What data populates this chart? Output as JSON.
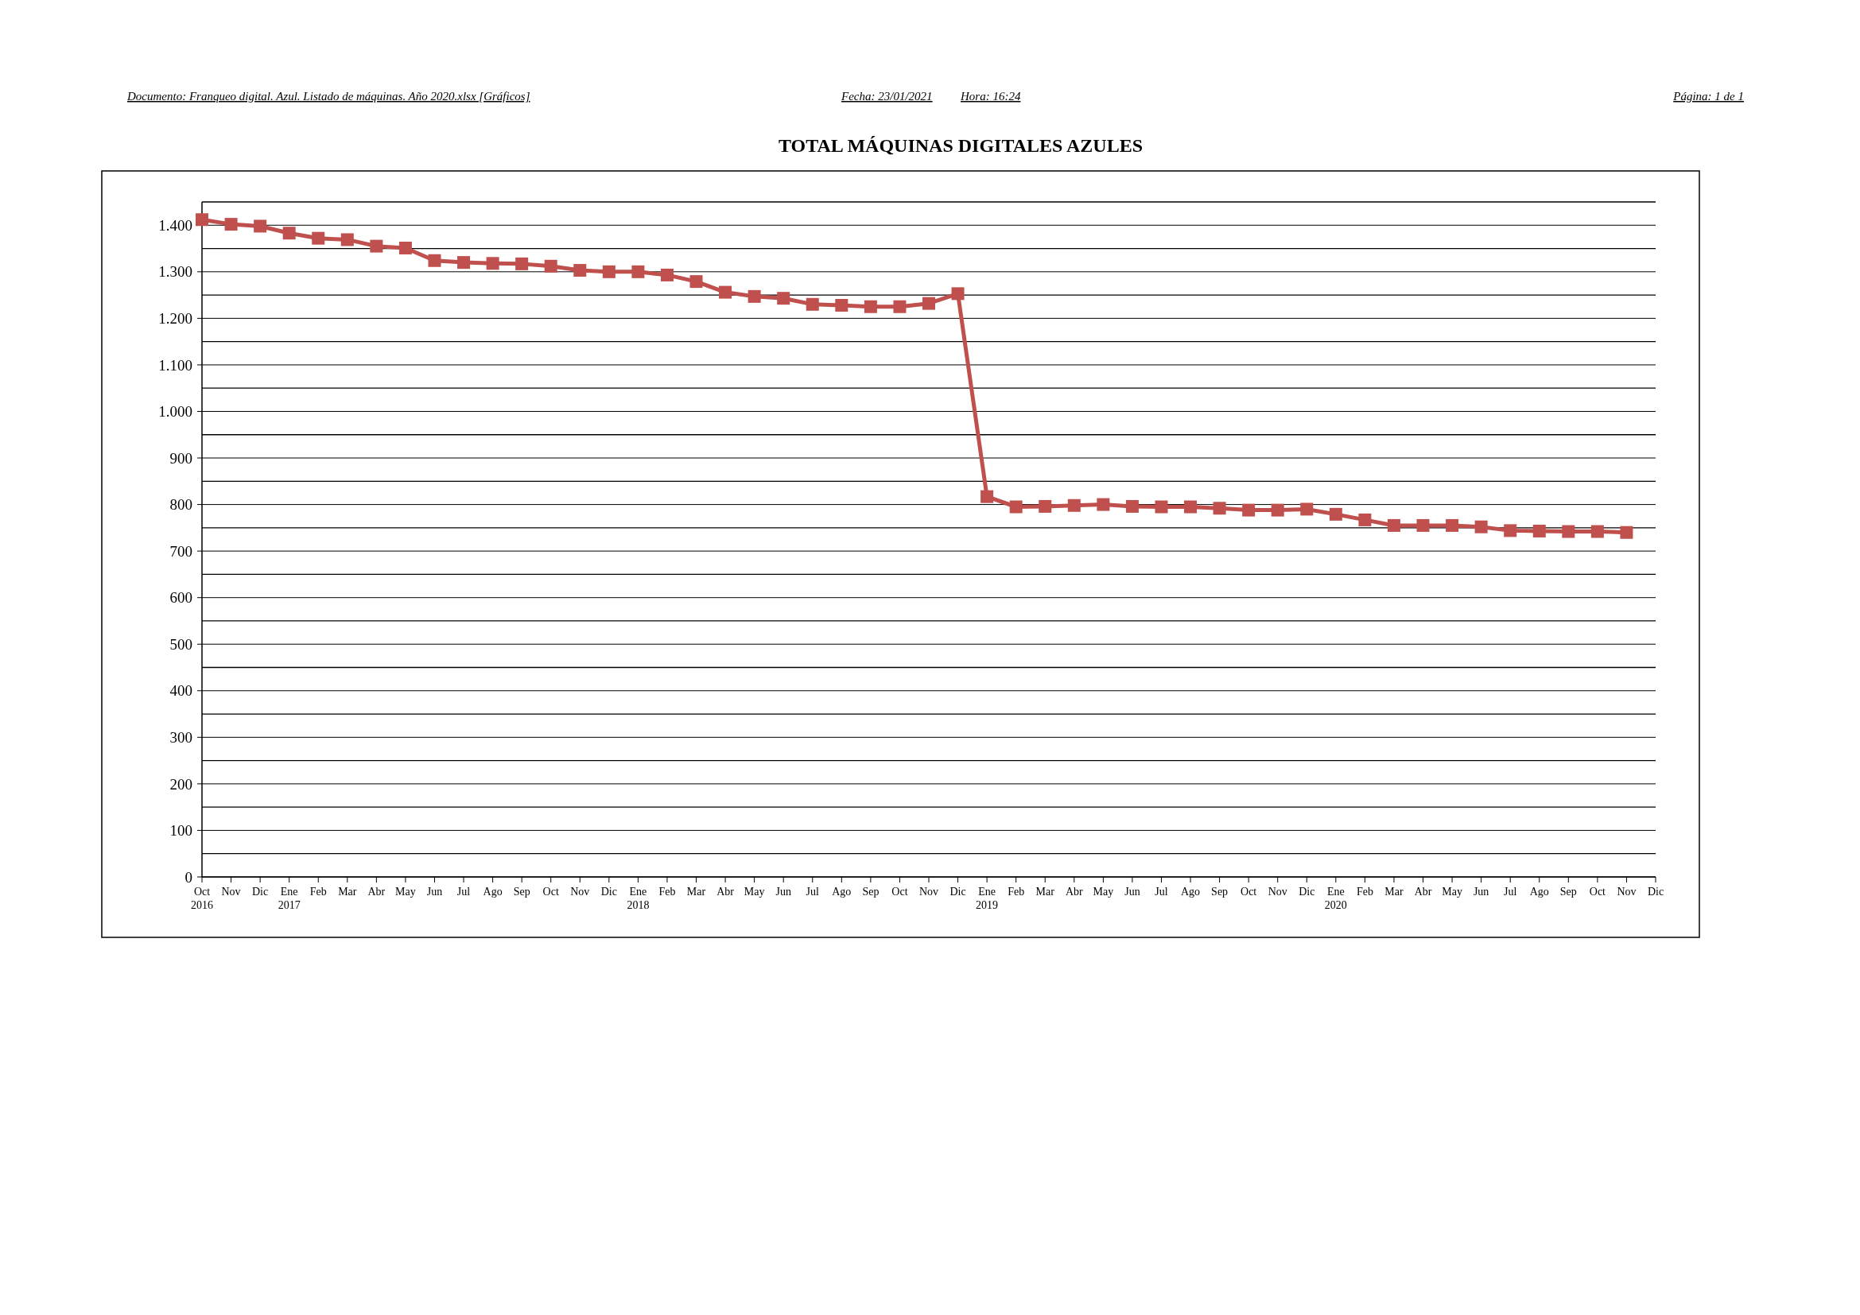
{
  "chart_data": {
    "type": "line",
    "title": "TOTAL MÁQUINAS DIGITALES AZULES",
    "annotations": [
      "Documento: Franqueo digital. Azul. Listado de máquinas. Año 2020.xlsx [Gráficos]",
      "Fecha: 23/01/2021",
      "Hora: 16:24",
      "Página: 1 de 1"
    ],
    "categories": [
      "Oct 2016",
      "Nov",
      "Dic",
      "Ene 2017",
      "Feb",
      "Mar",
      "Abr",
      "May",
      "Jun",
      "Jul",
      "Ago",
      "Sep",
      "Oct",
      "Nov",
      "Dic",
      "Ene 2018",
      "Feb",
      "Mar",
      "Abr",
      "May",
      "Jun",
      "Jul",
      "Ago",
      "Sep",
      "Oct",
      "Nov",
      "Dic",
      "Ene 2019",
      "Feb",
      "Mar",
      "Abr",
      "May",
      "Jun",
      "Jul",
      "Ago",
      "Sep",
      "Oct",
      "Nov",
      "Dic",
      "Ene 2020",
      "Feb",
      "Mar",
      "Abr",
      "May",
      "Jun",
      "Jul",
      "Ago",
      "Sep",
      "Oct",
      "Nov",
      "Dic"
    ],
    "series": [
      {
        "color": "#c0504d",
        "values": [
          1412,
          1402,
          1398,
          1383,
          1372,
          1369,
          1355,
          1351,
          1324,
          1320,
          1318,
          1317,
          1312,
          1303,
          1300,
          1300,
          1293,
          1279,
          1256,
          1247,
          1243,
          1230,
          1228,
          1225,
          1225,
          1232,
          1253,
          817,
          795,
          796,
          798,
          800,
          796,
          795,
          795,
          792,
          788,
          788,
          790,
          779,
          767,
          755,
          755,
          755,
          752,
          744,
          743,
          742,
          742,
          740,
          null
        ]
      }
    ],
    "ylim": [
      0,
      1450
    ],
    "yticks": [
      0,
      {
        "value": 50,
        "label": null
      },
      {
        "value": 100,
        "label": "100"
      },
      {
        "value": 150,
        "label": null
      },
      200,
      {
        "value": 250,
        "label": null
      },
      300,
      {
        "value": 350,
        "label": null
      },
      400,
      {
        "value": 450,
        "label": null
      },
      500,
      {
        "value": 550,
        "label": null
      },
      600,
      {
        "value": 650,
        "label": null
      },
      700,
      {
        "value": 750,
        "label": null
      },
      800,
      {
        "value": 850,
        "label": null
      },
      900,
      {
        "value": 950,
        "label": null
      },
      {
        "value": 1000,
        "label": "1.000"
      },
      {
        "value": 1050,
        "label": null
      },
      {
        "value": 1100,
        "label": "1.100"
      },
      {
        "value": 1150,
        "label": null
      },
      {
        "value": 1200,
        "label": "1.200"
      },
      {
        "value": 1250,
        "label": null
      },
      {
        "value": 1300,
        "label": "1.300"
      },
      {
        "value": 1350,
        "label": null
      },
      {
        "value": 1400,
        "label": "1.400"
      },
      {
        "value": 1450,
        "label": null
      }
    ],
    "grid": true,
    "marker": "square",
    "line_style": "solid"
  }
}
